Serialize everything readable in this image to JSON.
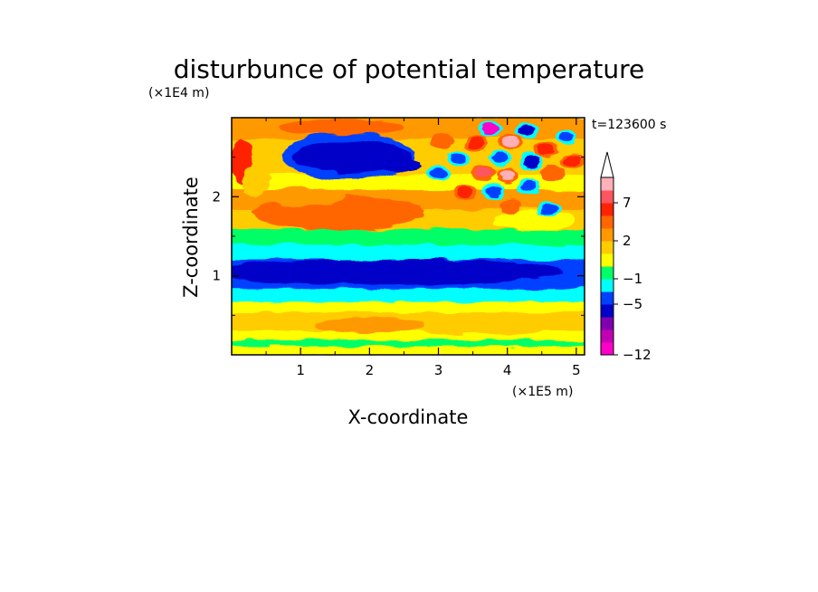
{
  "chart_data": {
    "type": "heatmap",
    "title": "disturbunce of potential temperature",
    "xlabel": "X-coordinate",
    "ylabel": "Z-coordinate",
    "x_unit": "(×1E5 m)",
    "y_unit": "(×1E4 m)",
    "time_label": "t=123600 s",
    "xlim": [
      0,
      5.12
    ],
    "ylim": [
      0,
      3.0
    ],
    "x_ticks": [
      "1",
      "2",
      "3",
      "4",
      "5"
    ],
    "x_tick_values": [
      1,
      2,
      3,
      4,
      5
    ],
    "y_ticks": [
      "1",
      "2"
    ],
    "y_tick_values": [
      1,
      2
    ],
    "colorbar": {
      "tick_labels": [
        "7",
        "2",
        "−1",
        "−5",
        "−12"
      ],
      "levels": [
        -12,
        -11,
        -9,
        -7,
        -5,
        -3,
        -1,
        0,
        1,
        2,
        3,
        5,
        7,
        9,
        11
      ],
      "colors": [
        "#ff00c8",
        "#c400b4",
        "#8000b0",
        "#0000c8",
        "#0040ff",
        "#00ffff",
        "#00ff66",
        "#ffff00",
        "#ffcc00",
        "#ff9900",
        "#ff6600",
        "#ff2200",
        "#ff5560",
        "#ffb0b8"
      ],
      "extend": "max"
    },
    "features": [
      {
        "region": "upper-left cold anomaly",
        "x": [
          0.9,
          2.6
        ],
        "z": [
          2.3,
          2.7
        ],
        "value": -6
      },
      {
        "region": "warm band",
        "x": [
          0.5,
          3.2
        ],
        "z": [
          1.6,
          2.05
        ],
        "value": 3
      },
      {
        "region": "warm band upper",
        "x": [
          0.7,
          2.4
        ],
        "z": [
          2.75,
          2.95
        ],
        "value": 3
      },
      {
        "region": "cold layer",
        "x": [
          0,
          5.12
        ],
        "z": [
          0.85,
          1.25
        ],
        "value": -5
      },
      {
        "region": "cool layer",
        "x": [
          0,
          5.12
        ],
        "z": [
          0.65,
          0.85
        ],
        "value": -1
      },
      {
        "region": "lower warm band",
        "x": [
          1.0,
          5.12
        ],
        "z": [
          0.25,
          0.55
        ],
        "value": 1
      },
      {
        "region": "wave packet cells",
        "x": [
          2.8,
          5.12
        ],
        "z": [
          1.8,
          3.0
        ],
        "value_range": [
          -12,
          11
        ]
      }
    ]
  }
}
